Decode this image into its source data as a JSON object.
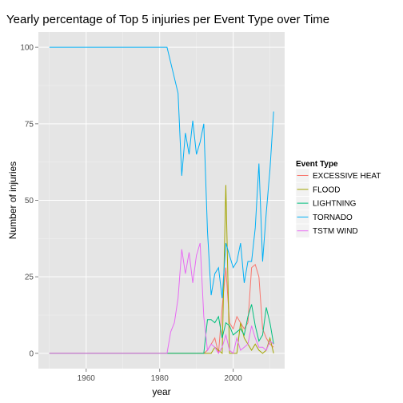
{
  "chart_data": {
    "type": "line",
    "title": "Yearly percentage of Top 5 injuries per Event Type over Time",
    "xlabel": "year",
    "ylabel": "Number of injuries",
    "xlim": [
      1947,
      2014
    ],
    "ylim": [
      -5,
      105
    ],
    "xticks": [
      1960,
      1980,
      2000
    ],
    "yticks": [
      0,
      25,
      50,
      75,
      100
    ],
    "grid": true,
    "background": "#e5e5e5",
    "legend_title": "Event Type",
    "legend_position": "right",
    "series": [
      {
        "name": "EXCESSIVE HEAT",
        "color": "#F8766D",
        "x": [
          1950,
          1991,
          1992,
          1993,
          1994,
          1995,
          1996,
          1997,
          1998,
          1999,
          2000,
          2001,
          2002,
          2003,
          2004,
          2005,
          2006,
          2007,
          2008,
          2009,
          2010,
          2011
        ],
        "y": [
          0,
          0,
          0,
          1,
          3,
          5,
          0,
          15,
          28,
          10,
          8,
          12,
          10,
          8,
          10,
          28,
          29,
          25,
          8,
          5,
          3,
          2
        ]
      },
      {
        "name": "FLOOD",
        "color": "#A3A500",
        "x": [
          1950,
          1991,
          1992,
          1993,
          1994,
          1995,
          1996,
          1997,
          1998,
          1999,
          2000,
          2001,
          2002,
          2003,
          2004,
          2005,
          2006,
          2007,
          2008,
          2009,
          2010,
          2011
        ],
        "y": [
          0,
          0,
          0,
          0,
          0,
          2,
          1,
          0,
          55,
          0,
          0,
          0,
          10,
          5,
          3,
          1,
          3,
          1,
          0,
          1,
          5,
          0
        ]
      },
      {
        "name": "LIGHTNING",
        "color": "#00BF7D",
        "x": [
          1950,
          1991,
          1992,
          1993,
          1994,
          1995,
          1996,
          1997,
          1998,
          1999,
          2000,
          2001,
          2002,
          2003,
          2004,
          2005,
          2006,
          2007,
          2008,
          2009,
          2010,
          2011
        ],
        "y": [
          0,
          0,
          0,
          11,
          11,
          10,
          12,
          5,
          10,
          9,
          6,
          7,
          8,
          6,
          12,
          16,
          9,
          4,
          6,
          15,
          10,
          3
        ]
      },
      {
        "name": "TORNADO",
        "color": "#00B0F6",
        "x": [
          1950,
          1982,
          1983,
          1984,
          1985,
          1986,
          1987,
          1988,
          1989,
          1990,
          1991,
          1992,
          1993,
          1994,
          1995,
          1996,
          1997,
          1998,
          1999,
          2000,
          2001,
          2002,
          2003,
          2004,
          2005,
          2006,
          2007,
          2008,
          2009,
          2010,
          2011
        ],
        "y": [
          100,
          100,
          95,
          90,
          85,
          58,
          72,
          65,
          76,
          65,
          69,
          75,
          40,
          19,
          26,
          28,
          18,
          36,
          32,
          28,
          30,
          36,
          23,
          30,
          30,
          41,
          62,
          30,
          46,
          60,
          79
        ]
      },
      {
        "name": "TSTM WIND",
        "color": "#E76BF3",
        "x": [
          1950,
          1982,
          1983,
          1984,
          1985,
          1986,
          1987,
          1988,
          1989,
          1990,
          1991,
          1992,
          1993,
          1994,
          1995,
          1996,
          1997,
          1998,
          1999,
          2000,
          2001,
          2002,
          2003,
          2004,
          2005,
          2006,
          2007,
          2008,
          2009,
          2010,
          2011
        ],
        "y": [
          0,
          0,
          7,
          10,
          18,
          34,
          26,
          33,
          23,
          32,
          36,
          12,
          1,
          3,
          2,
          0,
          2,
          6,
          1,
          0,
          5,
          1,
          2,
          3,
          9,
          5,
          2,
          2,
          1,
          4,
          3
        ]
      }
    ]
  }
}
